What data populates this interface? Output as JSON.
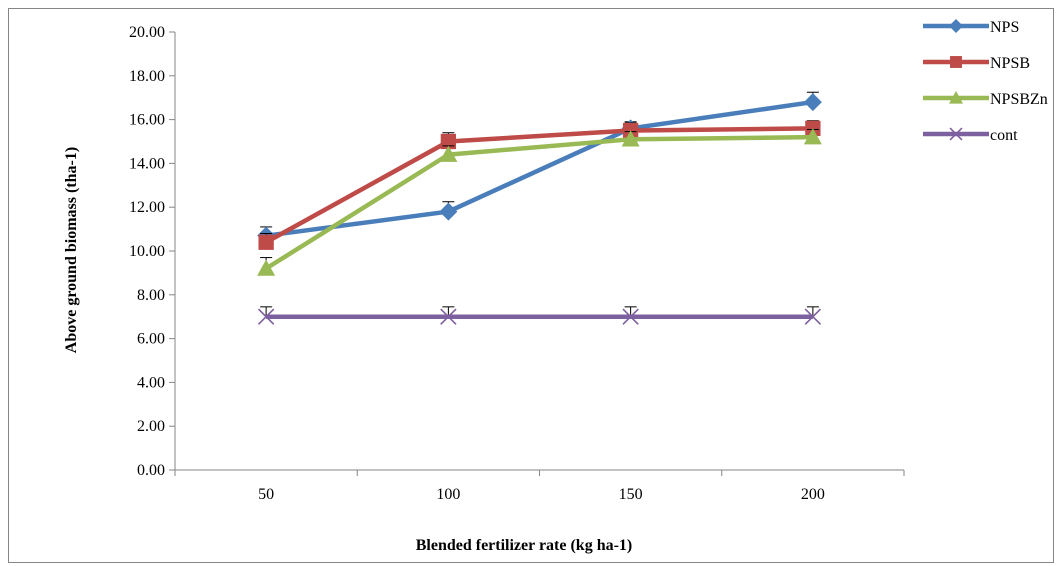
{
  "chart_data": {
    "type": "line",
    "xlabel": "Blended fertilizer rate (kg ha-1)",
    "ylabel": "Above ground biomass (tha-1)",
    "categories": [
      "50",
      "100",
      "150",
      "200"
    ],
    "ylim": [
      0,
      20
    ],
    "yticks": [
      "0.00",
      "2.00",
      "4.00",
      "6.00",
      "8.00",
      "10.00",
      "12.00",
      "14.00",
      "16.00",
      "18.00",
      "20.00"
    ],
    "grid": false,
    "legend_position": "right",
    "series": [
      {
        "name": "NPS",
        "color": "#4a7ebb",
        "marker": "diamond",
        "values": [
          10.7,
          11.8,
          15.6,
          16.8
        ],
        "error": [
          0.4,
          0.45,
          0.3,
          0.45
        ]
      },
      {
        "name": "NPSB",
        "color": "#be4b48",
        "marker": "square",
        "values": [
          10.4,
          15.0,
          15.5,
          15.6
        ],
        "error": [
          0.4,
          0.4,
          0.35,
          0.35
        ]
      },
      {
        "name": "NPSBZn",
        "color": "#98b954",
        "marker": "triangle",
        "values": [
          9.2,
          14.4,
          15.1,
          15.2
        ],
        "error": [
          0.5,
          0.4,
          0.35,
          0.35
        ]
      },
      {
        "name": "cont",
        "color": "#7d60a0",
        "marker": "x",
        "values": [
          7.0,
          7.0,
          7.0,
          7.0
        ],
        "error": [
          0.45,
          0.45,
          0.45,
          0.45
        ]
      }
    ]
  }
}
